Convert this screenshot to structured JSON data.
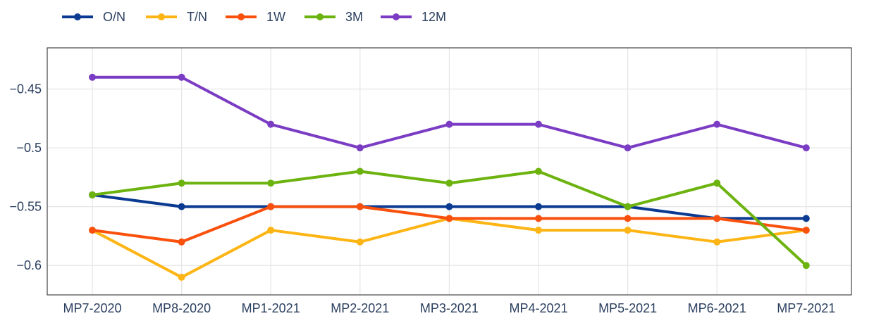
{
  "chart_data": {
    "type": "line",
    "title": "",
    "xlabel": "",
    "ylabel": "",
    "categories": [
      "MP7-2020",
      "MP8-2020",
      "MP1-2021",
      "MP2-2021",
      "MP3-2021",
      "MP4-2021",
      "MP5-2021",
      "MP6-2021",
      "MP7-2021"
    ],
    "ylim": [
      -0.625,
      -0.415
    ],
    "yticks": [
      -0.45,
      -0.5,
      -0.55,
      -0.6
    ],
    "ytick_labels": [
      "−0.45",
      "−0.5",
      "−0.55",
      "−0.6"
    ],
    "grid": true,
    "legend_position": "top-left",
    "series": [
      {
        "name": "O/N",
        "color": "#0a3a91",
        "values": [
          -0.54,
          -0.55,
          -0.55,
          -0.55,
          -0.55,
          -0.55,
          -0.55,
          -0.56,
          -0.56
        ]
      },
      {
        "name": "T/N",
        "color": "#fdb515",
        "values": [
          -0.57,
          -0.61,
          -0.57,
          -0.58,
          -0.56,
          -0.57,
          -0.57,
          -0.58,
          -0.57
        ]
      },
      {
        "name": "1W",
        "color": "#f9510d",
        "values": [
          -0.57,
          -0.58,
          -0.55,
          -0.55,
          -0.56,
          -0.56,
          -0.56,
          -0.56,
          -0.57
        ]
      },
      {
        "name": "3M",
        "color": "#6cb30f",
        "values": [
          -0.54,
          -0.53,
          -0.53,
          -0.52,
          -0.53,
          -0.52,
          -0.55,
          -0.53,
          -0.6
        ]
      },
      {
        "name": "12M",
        "color": "#7b3cc4",
        "values": [
          -0.44,
          -0.44,
          -0.48,
          -0.5,
          -0.48,
          -0.48,
          -0.5,
          -0.48,
          -0.5
        ]
      }
    ]
  }
}
